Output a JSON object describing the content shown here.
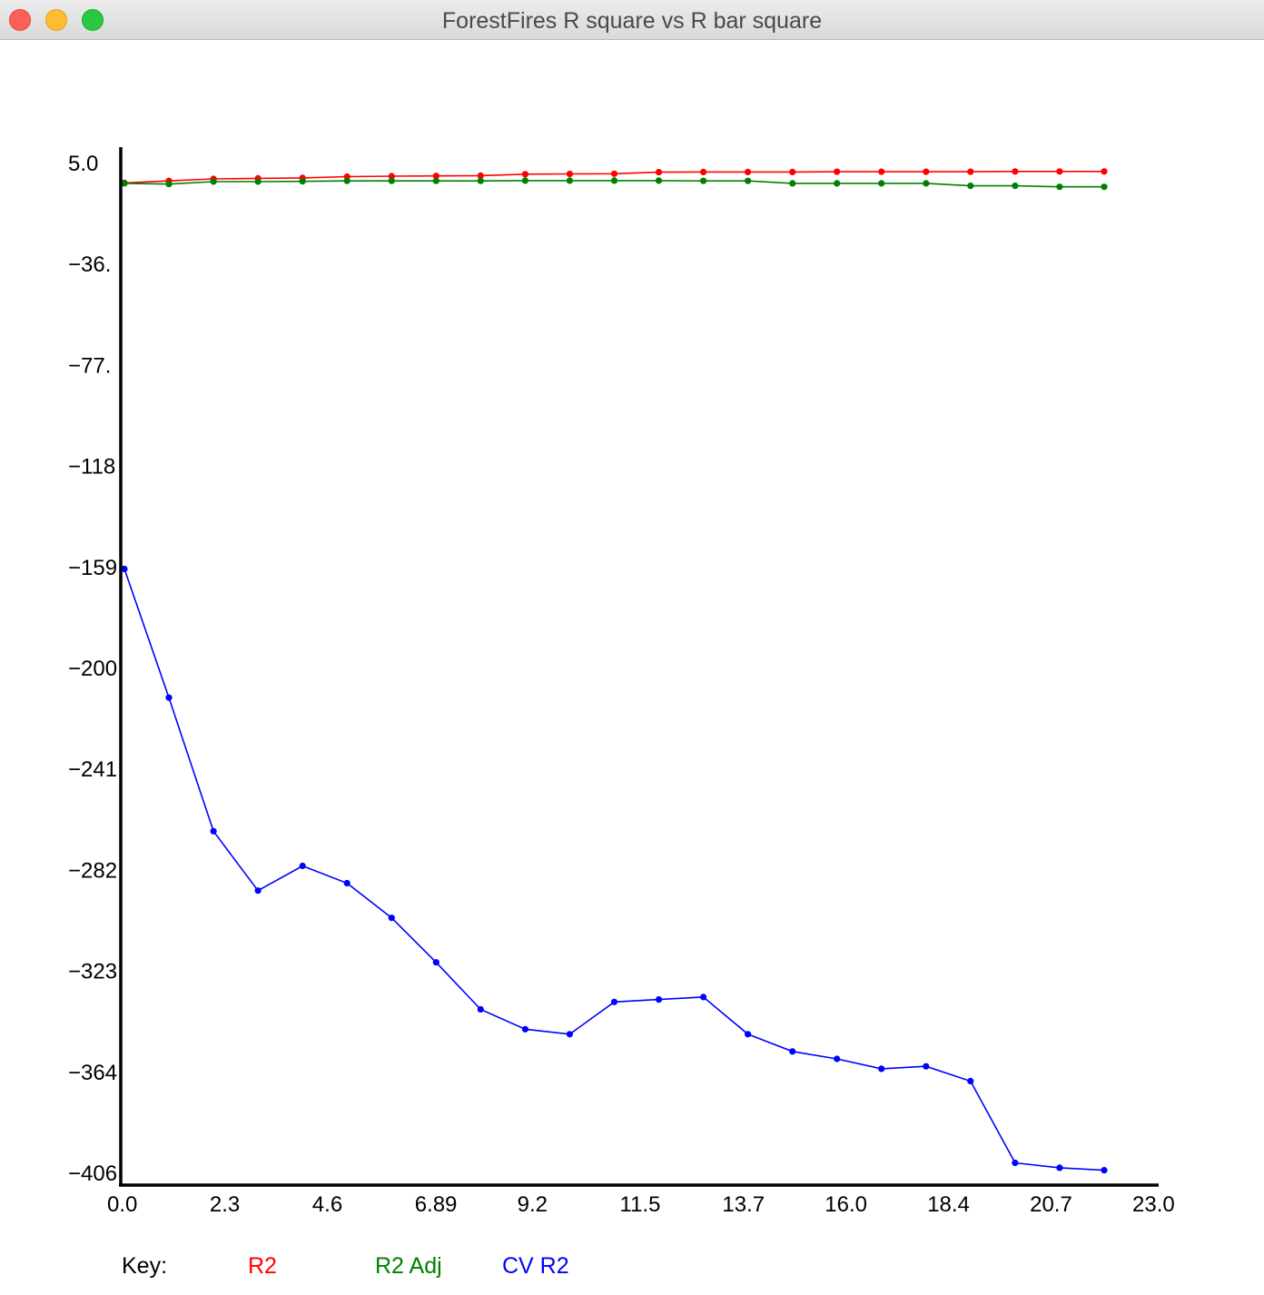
{
  "window": {
    "title": "ForestFires R square vs R bar square"
  },
  "colors": {
    "r2": "#ff0000",
    "r2_adj": "#008000",
    "cv_r2": "#0000ff",
    "axis": "#000000"
  },
  "chart_data": {
    "type": "line",
    "title": "",
    "xlabel": "",
    "ylabel": "",
    "xlim": [
      0.0,
      23.0
    ],
    "ylim": [
      -406,
      5.0
    ],
    "x_tick_labels": [
      "0.0",
      "2.3",
      "4.6",
      "6.89",
      "9.2",
      "11.5",
      "13.7",
      "16.0",
      "18.4",
      "20.7",
      "23.0"
    ],
    "y_tick_labels": [
      "5.0",
      "-36.",
      "-77.",
      "-118",
      "-159",
      "-200",
      "-241",
      "-282",
      "-323",
      "-364",
      "-406"
    ],
    "grid": false,
    "legend_position": "bottom",
    "x": [
      0,
      1,
      2,
      3,
      4,
      5,
      6,
      7,
      8,
      9,
      10,
      11,
      12,
      13,
      14,
      15,
      16,
      17,
      18,
      19,
      20,
      21,
      22
    ],
    "series": [
      {
        "name": "R2",
        "color": "#ff0000",
        "values": [
          -1.0,
          -0.2,
          0.6,
          0.8,
          1.0,
          1.5,
          1.7,
          1.8,
          1.9,
          2.5,
          2.6,
          2.7,
          3.3,
          3.4,
          3.4,
          3.4,
          3.5,
          3.5,
          3.5,
          3.5,
          3.6,
          3.6,
          3.6
        ]
      },
      {
        "name": "R2 Adj",
        "color": "#008000",
        "values": [
          -1.2,
          -1.5,
          -0.5,
          -0.5,
          -0.4,
          -0.2,
          -0.2,
          -0.2,
          -0.2,
          -0.1,
          -0.1,
          -0.1,
          -0.1,
          -0.2,
          -0.2,
          -1.2,
          -1.2,
          -1.2,
          -1.2,
          -2.2,
          -2.2,
          -2.6,
          -2.6
        ]
      },
      {
        "name": "CV R2",
        "color": "#0000ff",
        "values": [
          -157,
          -209,
          -263,
          -287,
          -277,
          -284,
          -298,
          -316,
          -335,
          -343,
          -345,
          -332,
          -331,
          -330,
          -345,
          -352,
          -355,
          -359,
          -358,
          -364,
          -397,
          -399,
          -400
        ]
      }
    ]
  },
  "key": {
    "label": "Key:",
    "items": [
      {
        "label": "R2",
        "color": "#ff0000"
      },
      {
        "label": "R2 Adj",
        "color": "#008000"
      },
      {
        "label": "CV R2",
        "color": "#0000ff"
      }
    ]
  }
}
